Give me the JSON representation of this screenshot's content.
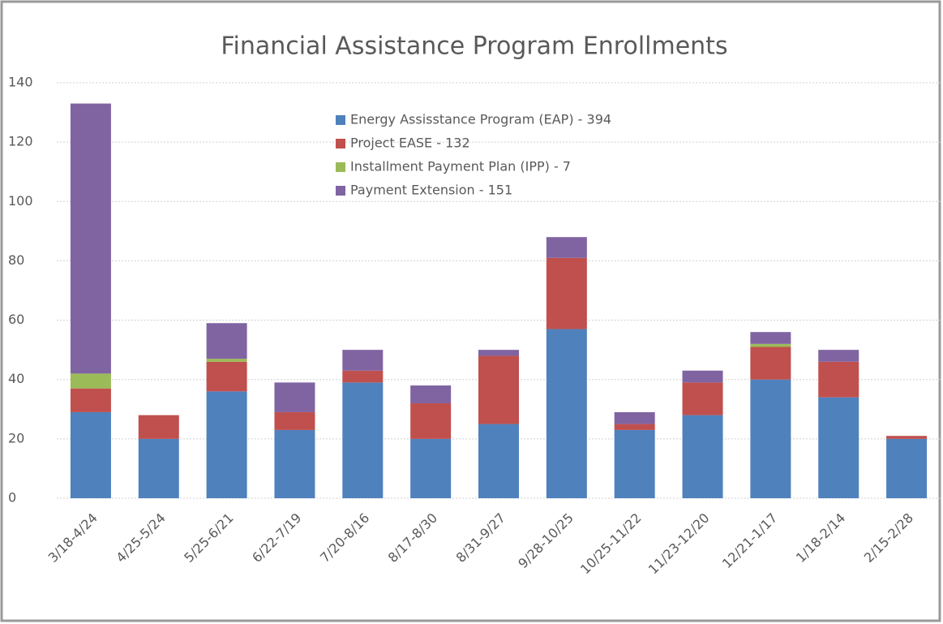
{
  "chart_data": {
    "type": "stacked_bar",
    "title": "Financial Assistance Program Enrollments",
    "categories": [
      "3/18-4/24",
      "4/25-5/24",
      "5/25-6/21",
      "6/22-7/19",
      "7/20-8/16",
      "8/17-8/30",
      "8/31-9/27",
      "9/28-10/25",
      "10/25-11/22",
      "11/23-12/20",
      "12/21-1/17",
      "1/18-2/14",
      "2/15-2/28"
    ],
    "series": [
      {
        "name": "Energy Assisstance Program (EAP) - 394",
        "color": "#4f81bd",
        "values": [
          29,
          20,
          36,
          23,
          39,
          20,
          25,
          57,
          23,
          28,
          40,
          34,
          20
        ]
      },
      {
        "name": "Project EASE - 132",
        "color": "#c0504d",
        "values": [
          8,
          8,
          10,
          6,
          4,
          12,
          23,
          24,
          2,
          11,
          11,
          12,
          1
        ]
      },
      {
        "name": "Installment Payment Plan (IPP) - 7",
        "color": "#9bbb59",
        "values": [
          5,
          0,
          1,
          0,
          0,
          0,
          0,
          0,
          0,
          0,
          1,
          0,
          0
        ]
      },
      {
        "name": "Payment Extension - 151",
        "color": "#8064a2",
        "values": [
          91,
          0,
          12,
          10,
          7,
          6,
          2,
          7,
          4,
          4,
          4,
          4,
          0
        ]
      }
    ],
    "ylim": [
      0,
      140
    ],
    "yticks": [
      0,
      20,
      40,
      60,
      80,
      100,
      120,
      140
    ],
    "grid": true
  }
}
